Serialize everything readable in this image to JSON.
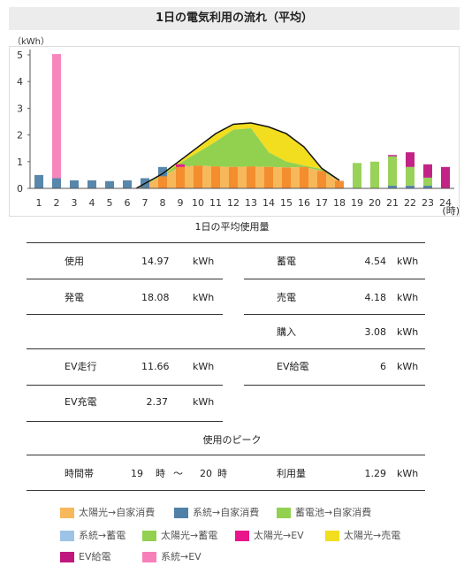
{
  "title": "1日の電気利用の流れ（平均）",
  "chart_data": {
    "type": "bar",
    "stacked": true,
    "y_unit_label": "（kWh）",
    "x_unit_label": "(時)",
    "ylim": [
      0,
      5
    ],
    "yticks": [
      0,
      1,
      2,
      3,
      4,
      5
    ],
    "categories": [
      "1",
      "2",
      "3",
      "4",
      "5",
      "6",
      "7",
      "8",
      "9",
      "10",
      "11",
      "12",
      "13",
      "14",
      "15",
      "16",
      "17",
      "18",
      "19",
      "20",
      "21",
      "22",
      "23",
      "24"
    ],
    "series": [
      {
        "name": "太陽光→自家消費",
        "color": "#f7b85c",
        "values": [
          0,
          0,
          0,
          0,
          0,
          0,
          0,
          0.45,
          0.8,
          0.85,
          0.82,
          0.8,
          0.82,
          0.8,
          0.78,
          0.8,
          0.65,
          0.28,
          0,
          0,
          0,
          0,
          0,
          0
        ]
      },
      {
        "name": "系統→自家消費",
        "color": "#4f81a8",
        "values": [
          0.5,
          0.38,
          0.3,
          0.3,
          0.27,
          0.3,
          0.38,
          0.35,
          0,
          0,
          0,
          0,
          0,
          0,
          0,
          0,
          0,
          0,
          0,
          0,
          0.1,
          0.1,
          0.1,
          0
        ]
      },
      {
        "name": "蓄電池→自家消費",
        "color": "#92d050",
        "values": [
          0,
          0,
          0,
          0,
          0,
          0,
          0,
          0,
          0,
          0,
          0,
          0,
          0,
          0,
          0,
          0,
          0,
          0,
          0.95,
          1.0,
          1.1,
          0.7,
          0.3,
          0
        ]
      },
      {
        "name": "系統→蓄電",
        "color": "#9dc3e6",
        "values": [
          0,
          0,
          0,
          0,
          0,
          0,
          0,
          0,
          0,
          0,
          0,
          0,
          0,
          0,
          0,
          0,
          0,
          0,
          0,
          0,
          0,
          0,
          0,
          0
        ]
      },
      {
        "name": "太陽光→蓄電",
        "color": "#92d050",
        "values": [
          0,
          0,
          0,
          0,
          0,
          0,
          0,
          0,
          0,
          0,
          0,
          0,
          0,
          0,
          0,
          0,
          0,
          0,
          0,
          0,
          0,
          0,
          0,
          0
        ]
      },
      {
        "name": "太陽光→EV",
        "color": "#e8168a",
        "values": [
          0,
          0,
          0,
          0,
          0,
          0,
          0,
          0,
          0.1,
          0,
          0,
          0,
          0,
          0,
          0,
          0,
          0,
          0,
          0,
          0,
          0,
          0,
          0,
          0
        ]
      },
      {
        "name": "太陽光→売電",
        "color": "#f2dd1f",
        "values": [
          0,
          0,
          0,
          0,
          0,
          0,
          0,
          0,
          0,
          0,
          0,
          0,
          0,
          0,
          0,
          0,
          0,
          0,
          0,
          0,
          0,
          0,
          0,
          0
        ]
      },
      {
        "name": "EV給電",
        "color": "#c0177f",
        "values": [
          0,
          0,
          0,
          0,
          0,
          0,
          0,
          0,
          0,
          0,
          0,
          0,
          0,
          0,
          0,
          0,
          0,
          0,
          0,
          0,
          0.05,
          0.55,
          0.5,
          0.8
        ]
      },
      {
        "name": "系統→EV",
        "color": "#f77fb9",
        "values": [
          0,
          4.65,
          0,
          0,
          0,
          0,
          0,
          0,
          0,
          0,
          0,
          0,
          0,
          0,
          0,
          0,
          0,
          0,
          0,
          0,
          0,
          0,
          0,
          0
        ]
      }
    ],
    "areas": {
      "x": [
        6.5,
        8,
        9,
        10,
        11,
        12,
        13,
        14,
        15,
        16,
        17,
        18
      ],
      "solar_self_top": [
        0,
        0.45,
        0.8,
        0.85,
        0.82,
        0.8,
        0.82,
        0.8,
        0.78,
        0.8,
        0.65,
        0.28
      ],
      "solar_battery_top": [
        0,
        0.5,
        0.95,
        1.35,
        1.75,
        2.2,
        2.25,
        1.35,
        1.0,
        0.85,
        0.72,
        0.3
      ],
      "generation_top": [
        0,
        0.55,
        1.05,
        1.55,
        2.05,
        2.4,
        2.45,
        2.3,
        2.05,
        1.55,
        0.75,
        0.3
      ]
    }
  },
  "stats": {
    "section_avg": "1日の平均使用量",
    "usage_label": "使用",
    "usage_value": "14.97",
    "usage_unit": "kWh",
    "storage_label": "蓄電",
    "storage_value": "4.54",
    "storage_unit": "kWh",
    "gen_label": "発電",
    "gen_value": "18.08",
    "gen_unit": "kWh",
    "sell_label": "売電",
    "sell_value": "4.18",
    "sell_unit": "kWh",
    "buy_label": "購入",
    "buy_value": "3.08",
    "buy_unit": "kWh",
    "ev_drive_label": "EV走行",
    "ev_drive_value": "11.66",
    "ev_drive_unit": "kWh",
    "ev_supply_label": "EV給電",
    "ev_supply_value": "6",
    "ev_supply_unit": "kWh",
    "ev_charge_label": "EV充電",
    "ev_charge_value": "2.37",
    "ev_charge_unit": "kWh",
    "section_peak": "使用のピーク",
    "time_label": "時間帯",
    "time_from": "19",
    "time_from_unit": "時",
    "time_sep": "～",
    "time_to": "20",
    "time_to_unit": "時",
    "amount_label": "利用量",
    "amount_value": "1.29",
    "amount_unit": "kWh"
  },
  "legend": [
    {
      "label": "太陽光→自家消費",
      "color": "#f7b85c"
    },
    {
      "label": "系統→自家消費",
      "color": "#4f81a8"
    },
    {
      "label": "蓄電池→自家消費",
      "color": "#92d050"
    },
    {
      "label": "系統→蓄電",
      "color": "#9dc3e6"
    },
    {
      "label": "太陽光→蓄電",
      "color": "#92d050"
    },
    {
      "label": "太陽光→EV",
      "color": "#e8168a"
    },
    {
      "label": "太陽光→売電",
      "color": "#f2dd1f"
    },
    {
      "label": "EV給電",
      "color": "#c0177f"
    },
    {
      "label": "系統→EV",
      "color": "#f77fb9"
    }
  ]
}
